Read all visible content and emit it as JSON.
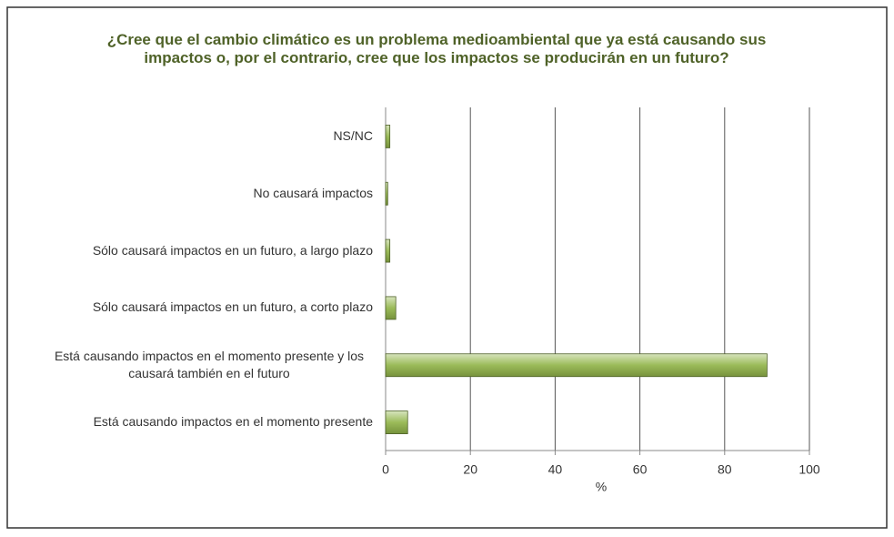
{
  "chart_data": {
    "type": "bar",
    "orientation": "horizontal",
    "title": "¿Cree que el cambio climático es un problema medioambiental que ya está causando sus impactos o, por el contrario, cree que los impactos se producirán en un futuro?",
    "categories": [
      "NS/NC",
      "No causará impactos",
      "Sólo causará impactos en un futuro, a largo plazo",
      "Sólo causará impactos en un futuro, a corto plazo",
      "Está causando impactos en el momento presente y los causará también en el futuro",
      "Está causando impactos en el momento presente"
    ],
    "values": [
      1.0,
      0.5,
      1.0,
      2.4,
      90,
      5.2
    ],
    "color": "#9bbb59",
    "xlabel": "%",
    "xlim": [
      0,
      100
    ],
    "xticks": [
      0,
      20,
      40,
      60,
      80,
      100
    ],
    "grid": true
  }
}
